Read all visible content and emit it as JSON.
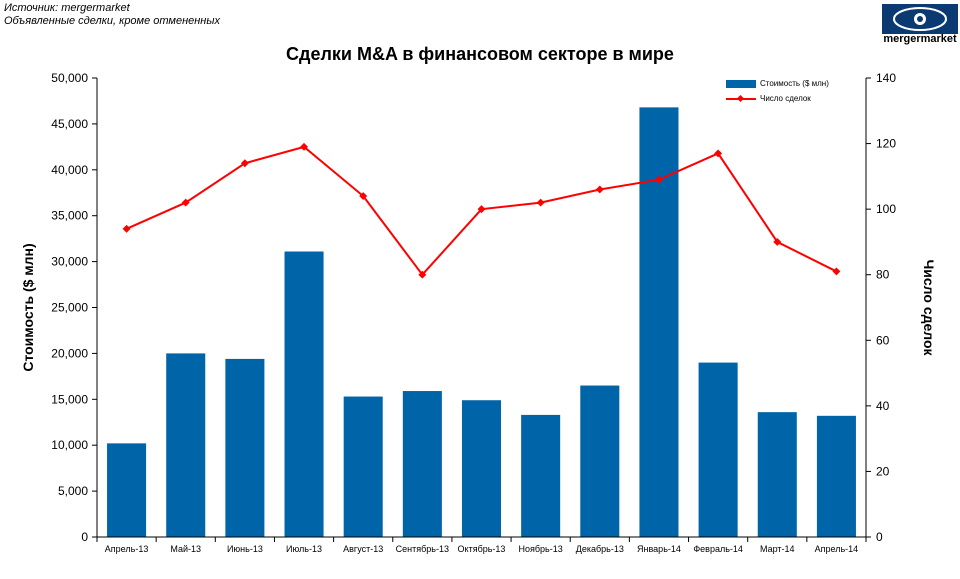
{
  "source_line1": "Источник: mergermarket",
  "source_line2": "Объявленные сделки, кроме отмененных",
  "logo_text": "mergermarket",
  "colors": {
    "bar": "#0064a8",
    "line": "#ff0000"
  },
  "chart_data": {
    "type": "bar",
    "title": "Сделки M&A  в финансовом секторе в мире",
    "categories": [
      "Апрель-13",
      "Май-13",
      "Июнь-13",
      "Июль-13",
      "Август-13",
      "Сентябрь-13",
      "Октябрь-13",
      "Ноябрь-13",
      "Декабрь-13",
      "Январь-14",
      "Февраль-14",
      "Март-14",
      "Апрель-14"
    ],
    "series": [
      {
        "name": "Стоимость  ($ млн)",
        "type": "bar",
        "axis": "left",
        "values": [
          10200,
          20000,
          19400,
          31100,
          15300,
          15900,
          14900,
          13300,
          16500,
          46800,
          19000,
          13600,
          13200
        ]
      },
      {
        "name": "Число сделок",
        "type": "line",
        "axis": "right",
        "values": [
          94,
          102,
          114,
          119,
          104,
          80,
          100,
          102,
          106,
          109,
          117,
          90,
          81
        ]
      }
    ],
    "ylabel": "Стоимость  ($ млн)",
    "y2label": "Число сделок",
    "ylim": [
      0,
      50000
    ],
    "y2lim": [
      0,
      140
    ],
    "yticks": [
      "0",
      "5,000",
      "10,000",
      "15,000",
      "20,000",
      "25,000",
      "30,000",
      "35,000",
      "40,000",
      "45,000",
      "50,000"
    ],
    "y2ticks": [
      "0",
      "20",
      "40",
      "60",
      "80",
      "100",
      "120",
      "140"
    ],
    "legend_position": "top-right",
    "grid": false
  }
}
